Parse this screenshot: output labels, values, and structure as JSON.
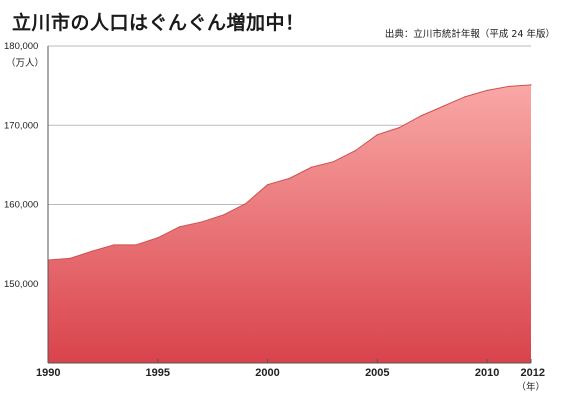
{
  "header": {
    "title": "立川市の人口はぐんぐん増加中！",
    "source": "出典：立川市統計年報（平成 24 年版）"
  },
  "chart_data": {
    "type": "area",
    "title": "立川市の人口はぐんぐん増加中！",
    "ylabel": "（万人）",
    "xlabel": "（年）",
    "xlim": [
      1990,
      2012
    ],
    "ylim": [
      140000,
      180000
    ],
    "y_ticks": [
      150000,
      160000,
      170000,
      180000
    ],
    "y_tick_labels": [
      "150,000",
      "160,000",
      "170,000",
      "180,000"
    ],
    "x_ticks": [
      1990,
      1995,
      2000,
      2005,
      2010,
      2012
    ],
    "x_tick_labels": [
      "1990",
      "1995",
      "2000",
      "2005",
      "2010",
      "2012"
    ],
    "grid": true,
    "x": [
      1990,
      1991,
      1992,
      1993,
      1994,
      1995,
      1996,
      1997,
      1998,
      1999,
      2000,
      2001,
      2002,
      2003,
      2004,
      2005,
      2006,
      2007,
      2008,
      2009,
      2010,
      2011,
      2012
    ],
    "series": [
      {
        "values": [
          153000,
          153200,
          154100,
          154900,
          154900,
          155800,
          157200,
          157800,
          158700,
          160100,
          162500,
          163300,
          164700,
          165400,
          166800,
          168800,
          169700,
          171200,
          172400,
          173600,
          174400,
          174900,
          175100
        ]
      }
    ],
    "colors": {
      "fill_top": "#f9a8a6",
      "fill_bottom": "#d9434b",
      "line": "#d05050",
      "grid": "#bbbbbb"
    }
  }
}
